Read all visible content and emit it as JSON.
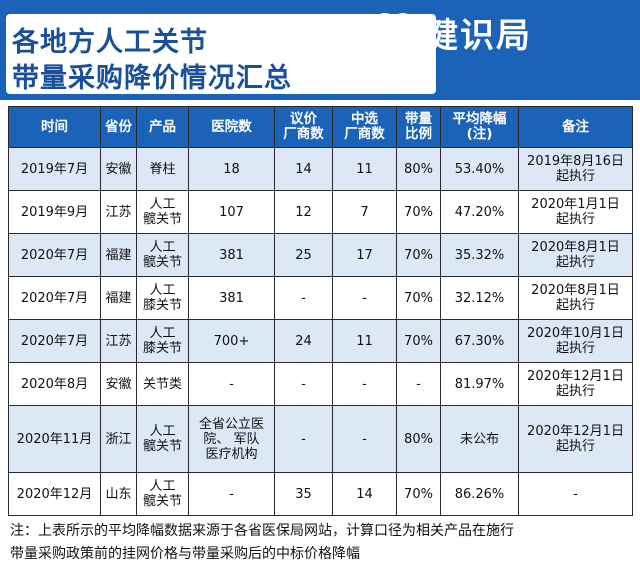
{
  "header": {
    "title_line1": "各地方人工关节",
    "title_line2": "带量采购降价情况汇总",
    "brand_name": "健识局",
    "brand_icon": "heart-logo-icon",
    "watermark": "健识局"
  },
  "table": {
    "columns": [
      {
        "line1": "时间",
        "line2": ""
      },
      {
        "line1": "省份",
        "line2": ""
      },
      {
        "line1": "产品",
        "line2": ""
      },
      {
        "line1": "医院数",
        "line2": ""
      },
      {
        "line1": "议价",
        "line2": "厂商数"
      },
      {
        "line1": "中选",
        "line2": "厂商数"
      },
      {
        "line1": "带量",
        "line2": "比例"
      },
      {
        "line1": "平均降幅",
        "line2": "(注)"
      },
      {
        "line1": "备注",
        "line2": ""
      }
    ],
    "rows": [
      {
        "time": "2019年7月",
        "province": "安徽",
        "product_l1": "脊柱",
        "product_l2": "",
        "hosp_l1": "18",
        "hosp_l2": "",
        "hosp_l3": "",
        "bargain": "14",
        "selected": "11",
        "ratio": "80%",
        "drop": "53.40%",
        "note_l1": "2019年8月16日",
        "note_l2": "起执行"
      },
      {
        "time": "2019年9月",
        "province": "江苏",
        "product_l1": "人工",
        "product_l2": "髋关节",
        "hosp_l1": "107",
        "hosp_l2": "",
        "hosp_l3": "",
        "bargain": "12",
        "selected": "7",
        "ratio": "70%",
        "drop": "47.20%",
        "note_l1": "2020年1月1日",
        "note_l2": "起执行"
      },
      {
        "time": "2020年7月",
        "province": "福建",
        "product_l1": "人工",
        "product_l2": "髋关节",
        "hosp_l1": "381",
        "hosp_l2": "",
        "hosp_l3": "",
        "bargain": "25",
        "selected": "17",
        "ratio": "70%",
        "drop": "35.32%",
        "note_l1": "2020年8月1日",
        "note_l2": "起执行"
      },
      {
        "time": "2020年7月",
        "province": "福建",
        "product_l1": "人工",
        "product_l2": "膝关节",
        "hosp_l1": "381",
        "hosp_l2": "",
        "hosp_l3": "",
        "bargain": "-",
        "selected": "-",
        "ratio": "70%",
        "drop": "32.12%",
        "note_l1": "2020年8月1日",
        "note_l2": "起执行"
      },
      {
        "time": "2020年7月",
        "province": "江苏",
        "product_l1": "人工",
        "product_l2": "膝关节",
        "hosp_l1": "700+",
        "hosp_l2": "",
        "hosp_l3": "",
        "bargain": "24",
        "selected": "11",
        "ratio": "70%",
        "drop": "67.30%",
        "note_l1": "2020年10月1日",
        "note_l2": "起执行"
      },
      {
        "time": "2020年8月",
        "province": "安徽",
        "product_l1": "关节类",
        "product_l2": "",
        "hosp_l1": "-",
        "hosp_l2": "",
        "hosp_l3": "",
        "bargain": "-",
        "selected": "-",
        "ratio": "-",
        "drop": "81.97%",
        "note_l1": "2020年12月1日",
        "note_l2": "起执行"
      },
      {
        "time": "2020年11月",
        "province": "浙江",
        "product_l1": "人工",
        "product_l2": "髋关节",
        "hosp_l1": "全省公立医",
        "hosp_l2": "院、 军队",
        "hosp_l3": "医疗机构",
        "bargain": "-",
        "selected": "-",
        "ratio": "80%",
        "drop": "未公布",
        "note_l1": "2020年12月1日",
        "note_l2": "起执行"
      },
      {
        "time": "2020年12月",
        "province": "山东",
        "product_l1": "人工",
        "product_l2": "髋关节",
        "hosp_l1": "-",
        "hosp_l2": "",
        "hosp_l3": "",
        "bargain": "35",
        "selected": "14",
        "ratio": "70%",
        "drop": "86.26%",
        "note_l1": "-",
        "note_l2": ""
      }
    ]
  },
  "footnote": {
    "line1": "注：上表所示的平均降幅数据来源于各省医保局网站，计算口径为相关产品在施行",
    "line2": "带量采购政策前的挂网价格与带量采购后的中标价格降幅"
  },
  "colors": {
    "header_blue": "#1a63b8",
    "band_blue": "#dce8f6",
    "title_blue": "#1a4f9c"
  }
}
